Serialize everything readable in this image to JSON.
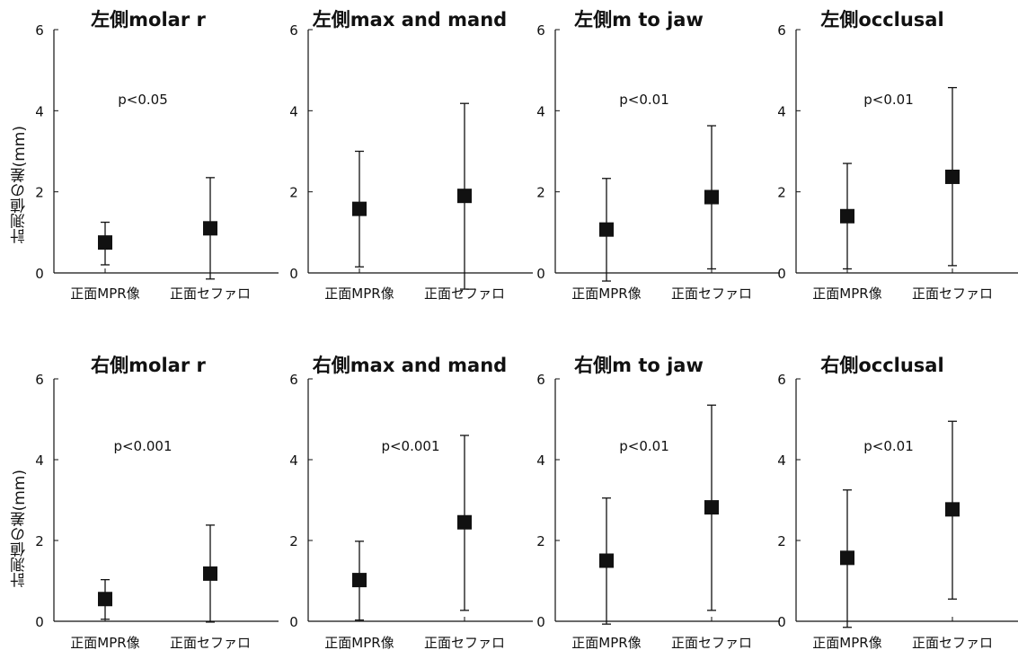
{
  "ylabel": "計測値の差(mm)",
  "chart_data": [
    {
      "type": "scatter",
      "title": "左側molar r",
      "annotation": "p<0.05",
      "categories": [
        "正面MPR像",
        "正面セファロ"
      ],
      "means": [
        0.75,
        1.1
      ],
      "lower": [
        0.2,
        -0.15
      ],
      "upper": [
        1.25,
        2.35
      ],
      "yticks": [
        "0",
        "2",
        "4",
        "6"
      ],
      "ylim": [
        0,
        6
      ]
    },
    {
      "type": "scatter",
      "title": "左側max and mand",
      "annotation": "",
      "categories": [
        "正面MPR像",
        "正面セファロ"
      ],
      "means": [
        1.58,
        1.9
      ],
      "lower": [
        0.15,
        -0.4
      ],
      "upper": [
        3.0,
        4.18
      ],
      "yticks": [
        "0",
        "2",
        "4",
        "6"
      ],
      "ylim": [
        0,
        6
      ]
    },
    {
      "type": "scatter",
      "title": "左側m to jaw",
      "annotation": "p<0.01",
      "categories": [
        "正面MPR像",
        "正面セファロ"
      ],
      "means": [
        1.07,
        1.87
      ],
      "lower": [
        -0.2,
        0.1
      ],
      "upper": [
        2.33,
        3.63
      ],
      "yticks": [
        "0",
        "2",
        "4",
        "6"
      ],
      "ylim": [
        0,
        6
      ]
    },
    {
      "type": "scatter",
      "title": "左側occlusal",
      "annotation": "p<0.01",
      "categories": [
        "正面MPR像",
        "正面セファロ"
      ],
      "means": [
        1.4,
        2.37
      ],
      "lower": [
        0.1,
        0.18
      ],
      "upper": [
        2.7,
        4.57
      ],
      "yticks": [
        "0",
        "2",
        "4",
        "6"
      ],
      "ylim": [
        0,
        6
      ]
    },
    {
      "type": "scatter",
      "title": "右側molar r",
      "annotation": "p<0.001",
      "categories": [
        "正面MPR像",
        "正面セファロ"
      ],
      "means": [
        0.55,
        1.18
      ],
      "lower": [
        0.05,
        -0.02
      ],
      "upper": [
        1.03,
        2.38
      ],
      "yticks": [
        "0",
        "2",
        "4",
        "6"
      ],
      "ylim": [
        0,
        6
      ]
    },
    {
      "type": "scatter",
      "title": "右側max and mand",
      "annotation": "p<0.001",
      "categories": [
        "正面MPR像",
        "正面セファロ"
      ],
      "means": [
        1.02,
        2.45
      ],
      "lower": [
        0.03,
        0.27
      ],
      "upper": [
        1.98,
        4.6
      ],
      "yticks": [
        "0",
        "2",
        "4",
        "6"
      ],
      "ylim": [
        0,
        6
      ]
    },
    {
      "type": "scatter",
      "title": "右側m to jaw",
      "annotation": "p<0.01",
      "categories": [
        "正面MPR像",
        "正面セファロ"
      ],
      "means": [
        1.5,
        2.82
      ],
      "lower": [
        -0.07,
        0.27
      ],
      "upper": [
        3.05,
        5.35
      ],
      "yticks": [
        "0",
        "2",
        "4",
        "6"
      ],
      "ylim": [
        0,
        6
      ]
    },
    {
      "type": "scatter",
      "title": "右側occlusal",
      "annotation": "p<0.01",
      "categories": [
        "正面MPR像",
        "正面セファロ"
      ],
      "means": [
        1.57,
        2.77
      ],
      "lower": [
        -0.15,
        0.55
      ],
      "upper": [
        3.25,
        4.95
      ],
      "yticks": [
        "0",
        "2",
        "4",
        "6"
      ],
      "ylim": [
        0,
        6
      ]
    }
  ]
}
